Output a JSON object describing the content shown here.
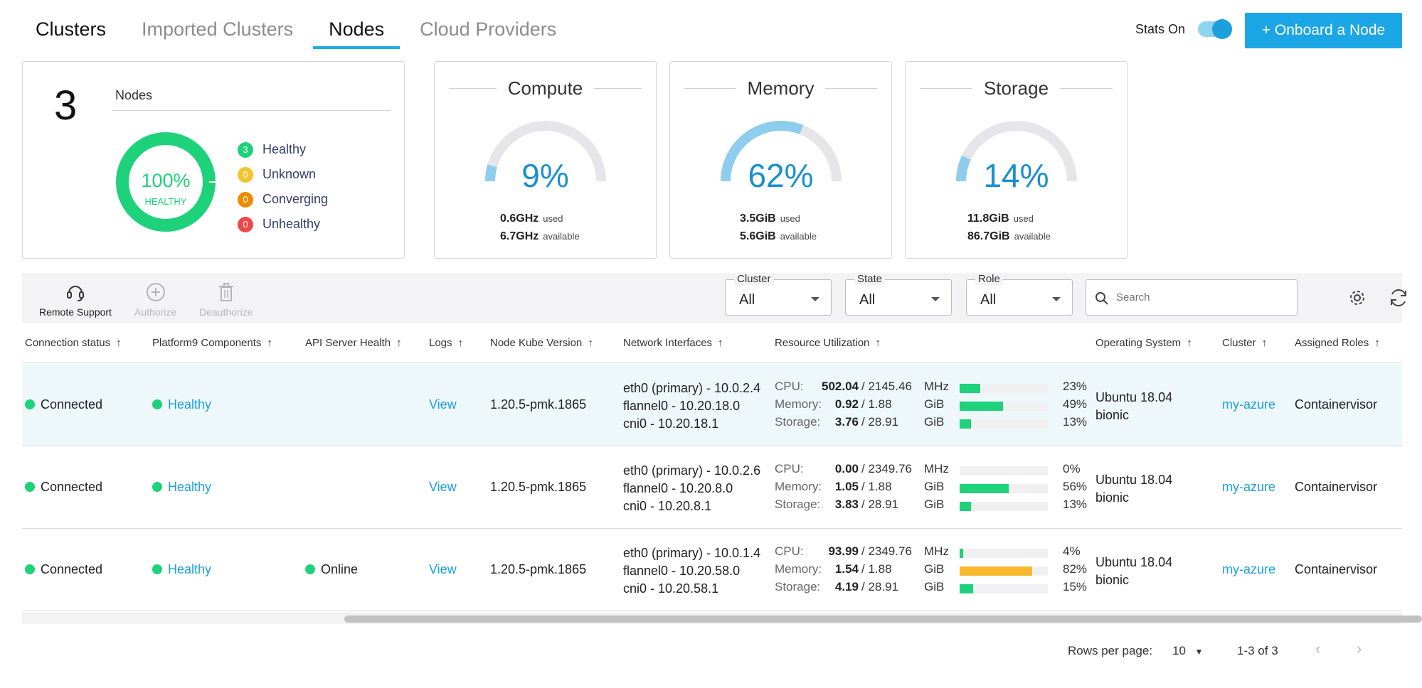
{
  "tabs": [
    {
      "label": "Clusters",
      "active": false
    },
    {
      "label": "Imported Clusters",
      "active": false
    },
    {
      "label": "Nodes",
      "active": true
    },
    {
      "label": "Cloud Providers",
      "active": false
    }
  ],
  "stats_toggle": {
    "label": "Stats On",
    "on": true
  },
  "onboard_button": {
    "label": "+ Onboard a Node"
  },
  "nodes_card": {
    "count": "3",
    "label": "Nodes",
    "donut_pct": "100%",
    "donut_sub": "HEALTHY",
    "legend": [
      {
        "count": "3",
        "label": "Healthy",
        "color": "#1dd27a"
      },
      {
        "count": "0",
        "label": "Unknown",
        "color": "#f4c430"
      },
      {
        "count": "0",
        "label": "Converging",
        "color": "#f08c00"
      },
      {
        "count": "0",
        "label": "Unhealthy",
        "color": "#f04848"
      }
    ]
  },
  "metrics": [
    {
      "title": "Compute",
      "pct": "9%",
      "fraction": 0.09,
      "used": "0.6GHz",
      "used_label": "used",
      "available": "6.7GHz",
      "available_label": "available"
    },
    {
      "title": "Memory",
      "pct": "62%",
      "fraction": 0.62,
      "used": "3.5GiB",
      "used_label": "used",
      "available": "5.6GiB",
      "available_label": "available"
    },
    {
      "title": "Storage",
      "pct": "14%",
      "fraction": 0.14,
      "used": "11.8GiB",
      "used_label": "used",
      "available": "86.7GiB",
      "available_label": "available"
    }
  ],
  "toolbar": {
    "remote_support": "Remote Support",
    "authorize": "Authorize",
    "deauthorize": "Deauthorize",
    "filters": [
      {
        "label": "Cluster",
        "value": "All"
      },
      {
        "label": "State",
        "value": "All"
      },
      {
        "label": "Role",
        "value": "All"
      }
    ],
    "search_placeholder": "Search"
  },
  "columns": [
    "Connection status",
    "Platform9 Components",
    "API Server Health",
    "Logs",
    "Node Kube Version",
    "Network Interfaces",
    "Resource Utilization",
    "Operating System",
    "Cluster",
    "Assigned Roles"
  ],
  "rows": [
    {
      "connection": "Connected",
      "components": "Healthy",
      "api_health": "",
      "logs": "View",
      "kube_version": "1.20.5-pmk.1865",
      "interfaces": [
        "eth0 (primary) - 10.0.2.4",
        "flannel0 - 10.20.18.0",
        "cni0 - 10.20.18.1"
      ],
      "resources": [
        {
          "label": "CPU:",
          "used": "502.04",
          "total": "/ 2145.46",
          "unit": "MHz",
          "pct": "23%",
          "fraction": 0.23
        },
        {
          "label": "Memory:",
          "used": "0.92",
          "total": "/ 1.88",
          "unit": "GiB",
          "pct": "49%",
          "fraction": 0.49
        },
        {
          "label": "Storage:",
          "used": "3.76",
          "total": "/ 28.91",
          "unit": "GiB",
          "pct": "13%",
          "fraction": 0.13
        }
      ],
      "os": [
        "Ubuntu 18.04",
        "bionic"
      ],
      "cluster": "my-azure",
      "roles": "Containervisor"
    },
    {
      "connection": "Connected",
      "components": "Healthy",
      "api_health": "",
      "logs": "View",
      "kube_version": "1.20.5-pmk.1865",
      "interfaces": [
        "eth0 (primary) - 10.0.2.6",
        "flannel0 - 10.20.8.0",
        "cni0 - 10.20.8.1"
      ],
      "resources": [
        {
          "label": "CPU:",
          "used": "0.00",
          "total": "/ 2349.76",
          "unit": "MHz",
          "pct": "0%",
          "fraction": 0.0
        },
        {
          "label": "Memory:",
          "used": "1.05",
          "total": "/ 1.88",
          "unit": "GiB",
          "pct": "56%",
          "fraction": 0.56
        },
        {
          "label": "Storage:",
          "used": "3.83",
          "total": "/ 28.91",
          "unit": "GiB",
          "pct": "13%",
          "fraction": 0.13
        }
      ],
      "os": [
        "Ubuntu 18.04",
        "bionic"
      ],
      "cluster": "my-azure",
      "roles": "Containervisor"
    },
    {
      "connection": "Connected",
      "components": "Healthy",
      "api_health": "Online",
      "logs": "View",
      "kube_version": "1.20.5-pmk.1865",
      "interfaces": [
        "eth0 (primary) - 10.0.1.4",
        "flannel0 - 10.20.58.0",
        "cni0 - 10.20.58.1"
      ],
      "resources": [
        {
          "label": "CPU:",
          "used": "93.99",
          "total": "/ 2349.76",
          "unit": "MHz",
          "pct": "4%",
          "fraction": 0.04
        },
        {
          "label": "Memory:",
          "used": "1.54",
          "total": "/ 1.88",
          "unit": "GiB",
          "pct": "82%",
          "fraction": 0.82
        },
        {
          "label": "Storage:",
          "used": "4.19",
          "total": "/ 28.91",
          "unit": "GiB",
          "pct": "15%",
          "fraction": 0.15
        }
      ],
      "os": [
        "Ubuntu 18.04",
        "bionic"
      ],
      "cluster": "my-azure",
      "roles": "Containervisor"
    }
  ],
  "pagination": {
    "rows_label": "Rows per page:",
    "rows_value": "10",
    "range": "1-3 of 3"
  },
  "colors": {
    "accent": "#1ba6e6",
    "healthy": "#1dd27a",
    "warning_bar": "#f7b82d",
    "gauge": "#8ecdee"
  }
}
